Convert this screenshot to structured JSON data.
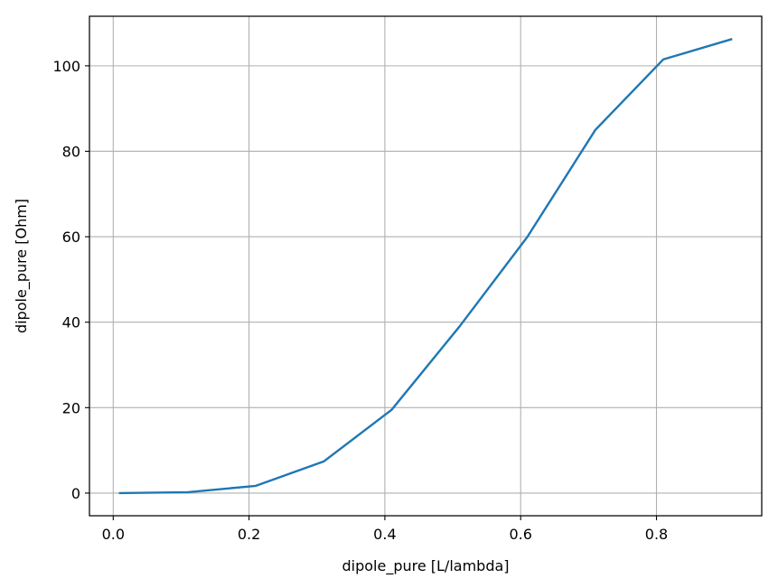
{
  "chart_data": {
    "type": "line",
    "title": "",
    "xlabel": "dipole_pure [L/lambda]",
    "ylabel": "dipole_pure [Ohm]",
    "xlim": [
      -0.035,
      0.955
    ],
    "ylim": [
      -5.3,
      111.6
    ],
    "grid": true,
    "x_ticks": [
      0.0,
      0.2,
      0.4,
      0.6,
      0.8
    ],
    "x_tick_labels": [
      "0.0",
      "0.2",
      "0.4",
      "0.6",
      "0.8"
    ],
    "y_ticks": [
      0,
      20,
      40,
      60,
      80,
      100
    ],
    "y_tick_labels": [
      "0",
      "20",
      "40",
      "60",
      "80",
      "100"
    ],
    "series": [
      {
        "color": "#1f77b4",
        "x": [
          0.01,
          0.11,
          0.21,
          0.31,
          0.41,
          0.51,
          0.61,
          0.71,
          0.81,
          0.91
        ],
        "y": [
          0.0,
          0.2,
          1.7,
          7.4,
          19.5,
          39.0,
          60.0,
          85.0,
          101.5,
          106.2
        ]
      }
    ]
  }
}
